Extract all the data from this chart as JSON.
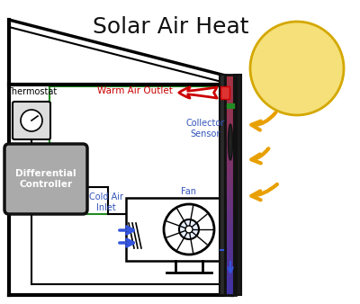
{
  "title": "Solar Air Heat",
  "title_fontsize": 18,
  "bg_color": "#ffffff",
  "sun_color": "#f5e07a",
  "sun_edge_color": "#d4a800",
  "warm_air_label": "Warm Air Outlet",
  "cold_air_label": "Cold Air\nInlet",
  "fan_label": "Fan",
  "collector_sensor_label": "Collector\nSensor",
  "thermostat_label": "Thermostat",
  "diff_controller_label": "Differential\nController",
  "orange_arrow_color": "#e8a000",
  "green_wire_color": "#228B22",
  "blue_label_color": "#3355bb",
  "red_arrow_color": "#cc0000"
}
